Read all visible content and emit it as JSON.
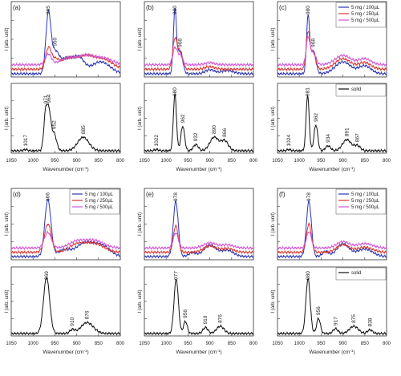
{
  "figure": {
    "wavenumber_label": "Wavenumber (cm",
    "wavenumber_sup": "-1",
    "wavenumber_close": ")",
    "y_label": "I (arb. unit)"
  },
  "chart_data": [
    {
      "panel": "a",
      "label": "(a)",
      "type": "line",
      "x_ticks": [
        1050,
        1000,
        950,
        900,
        850,
        800
      ],
      "xlim": [
        1050,
        800
      ],
      "solution": {
        "legend": [],
        "peak_labels": [
          {
            "x": 965,
            "text": "965"
          },
          {
            "x": 950,
            "text": "950"
          }
        ],
        "series": [
          {
            "name": "5 mg / 100µL",
            "color": "#2b35b5",
            "peaks": [
              [
                965,
                0.88,
                8
              ],
              [
                950,
                0.28,
                12
              ],
              [
                925,
                0.22,
                22
              ],
              [
                895,
                0.22,
                18
              ],
              [
                845,
                0.18,
                30
              ]
            ]
          },
          {
            "name": "5 mg / 250µL",
            "color": "#d9362f",
            "peaks": [
              [
                965,
                0.3,
                9
              ],
              [
                950,
                0.12,
                12
              ],
              [
                920,
                0.16,
                25
              ],
              [
                880,
                0.18,
                25
              ],
              [
                840,
                0.15,
                30
              ]
            ]
          },
          {
            "name": "5 mg / 500µL",
            "color": "#d155d8",
            "peaks": [
              [
                965,
                0.16,
                10
              ],
              [
                920,
                0.1,
                25
              ],
              [
                880,
                0.12,
                25
              ],
              [
                840,
                0.1,
                30
              ]
            ]
          }
        ]
      },
      "solid": {
        "legend": [],
        "peak_labels": [
          {
            "x": 971,
            "text": "971"
          },
          {
            "x": 964,
            "text": "964"
          },
          {
            "x": 952,
            "text": "952"
          },
          {
            "x": 885,
            "text": "885"
          },
          {
            "x": 1017,
            "text": "1017"
          }
        ],
        "series": [
          {
            "name": "solid",
            "color": "#111111",
            "peaks": [
              [
                971,
                0.62,
                6
              ],
              [
                963,
                0.55,
                6
              ],
              [
                952,
                0.28,
                8
              ],
              [
                885,
                0.22,
                18
              ],
              [
                1017,
                0.02,
                6
              ]
            ]
          }
        ]
      }
    },
    {
      "panel": "b",
      "label": "(b)",
      "type": "line",
      "x_ticks": [
        1050,
        1000,
        950,
        900,
        850,
        800
      ],
      "xlim": [
        1050,
        800
      ],
      "solution": {
        "legend": [],
        "peak_labels": [
          {
            "x": 980,
            "text": "980"
          },
          {
            "x": 968,
            "text": "968"
          }
        ],
        "series": [
          {
            "name": "5 mg / 100µL",
            "color": "#2b35b5",
            "peaks": [
              [
                980,
                0.95,
                5
              ],
              [
                968,
                0.35,
                8
              ],
              [
                900,
                0.06,
                15
              ],
              [
                860,
                0.05,
                20
              ]
            ]
          },
          {
            "name": "5 mg / 250µL",
            "color": "#d9362f",
            "peaks": [
              [
                980,
                0.45,
                7
              ],
              [
                968,
                0.25,
                8
              ],
              [
                900,
                0.04,
                15
              ]
            ]
          },
          {
            "name": "5 mg / 500µL",
            "color": "#d155d8",
            "peaks": [
              [
                980,
                0.25,
                7
              ],
              [
                968,
                0.14,
                8
              ],
              [
                900,
                0.03,
                15
              ]
            ]
          }
        ]
      },
      "solid": {
        "legend": [],
        "peak_labels": [
          {
            "x": 980,
            "text": "980"
          },
          {
            "x": 962,
            "text": "962"
          },
          {
            "x": 932,
            "text": "932"
          },
          {
            "x": 890,
            "text": "890"
          },
          {
            "x": 866,
            "text": "866"
          },
          {
            "x": 1022,
            "text": "1022"
          }
        ],
        "series": [
          {
            "name": "solid",
            "color": "#111111",
            "peaks": [
              [
                980,
                0.92,
                5
              ],
              [
                962,
                0.4,
                6
              ],
              [
                932,
                0.1,
                8
              ],
              [
                890,
                0.22,
                14
              ],
              [
                866,
                0.16,
                12
              ],
              [
                1022,
                0.02,
                6
              ]
            ]
          }
        ]
      }
    },
    {
      "panel": "c",
      "label": "(c)",
      "type": "line",
      "x_ticks": [
        1050,
        1000,
        950,
        900,
        850,
        800
      ],
      "xlim": [
        1050,
        800
      ],
      "solution": {
        "legend": [
          {
            "name": "5 mg / 100µL",
            "color": "#2b35b5"
          },
          {
            "name": "5 mg / 250µL",
            "color": "#d9362f"
          },
          {
            "name": "5 mg / 500µL",
            "color": "#d155d8"
          }
        ],
        "peak_labels": [
          {
            "x": 980,
            "text": "980"
          },
          {
            "x": 968,
            "text": "968"
          }
        ],
        "series": [
          {
            "name": "5 mg / 100µL",
            "color": "#2b35b5",
            "peaks": [
              [
                980,
                0.85,
                5
              ],
              [
                968,
                0.35,
                8
              ],
              [
                900,
                0.18,
                25
              ],
              [
                850,
                0.12,
                20
              ]
            ]
          },
          {
            "name": "5 mg / 250µL",
            "color": "#d9362f",
            "peaks": [
              [
                980,
                0.55,
                6
              ],
              [
                968,
                0.25,
                8
              ],
              [
                900,
                0.16,
                25
              ],
              [
                850,
                0.1,
                20
              ]
            ]
          },
          {
            "name": "5 mg / 500µL",
            "color": "#d155d8",
            "peaks": [
              [
                980,
                0.4,
                6
              ],
              [
                968,
                0.2,
                8
              ],
              [
                900,
                0.14,
                25
              ],
              [
                850,
                0.09,
                20
              ]
            ]
          }
        ]
      },
      "solid": {
        "legend": [
          {
            "name": "solid",
            "color": "#111111"
          }
        ],
        "peak_labels": [
          {
            "x": 981,
            "text": "981"
          },
          {
            "x": 962,
            "text": "962"
          },
          {
            "x": 934,
            "text": "934"
          },
          {
            "x": 891,
            "text": "891"
          },
          {
            "x": 867,
            "text": "867"
          },
          {
            "x": 1024,
            "text": "1024"
          }
        ],
        "series": [
          {
            "name": "solid",
            "color": "#111111",
            "peaks": [
              [
                981,
                0.9,
                5
              ],
              [
                962,
                0.42,
                6
              ],
              [
                934,
                0.08,
                8
              ],
              [
                891,
                0.18,
                14
              ],
              [
                867,
                0.08,
                10
              ],
              [
                1024,
                0.02,
                6
              ]
            ]
          }
        ]
      }
    },
    {
      "panel": "d",
      "label": "(d)",
      "type": "line",
      "x_ticks": [
        1050,
        1000,
        950,
        900,
        850,
        800
      ],
      "xlim": [
        1050,
        800
      ],
      "solution": {
        "legend": [
          {
            "name": "5 mg / 100µL",
            "color": "#2b35b5"
          },
          {
            "name": "5 mg / 250µL",
            "color": "#d9362f"
          },
          {
            "name": "5 mg / 500µL",
            "color": "#d155d8"
          }
        ],
        "peak_labels": [
          {
            "x": 966,
            "text": "966"
          }
        ],
        "series": [
          {
            "name": "5 mg / 100µL",
            "color": "#2b35b5",
            "peaks": [
              [
                966,
                0.9,
                10
              ],
              [
                930,
                0.1,
                20
              ],
              [
                880,
                0.22,
                30
              ],
              [
                840,
                0.15,
                25
              ]
            ]
          },
          {
            "name": "5 mg / 250µL",
            "color": "#d9362f",
            "peaks": [
              [
                966,
                0.45,
                11
              ],
              [
                900,
                0.12,
                25
              ],
              [
                860,
                0.14,
                30
              ]
            ]
          },
          {
            "name": "5 mg / 500µL",
            "color": "#d155d8",
            "peaks": [
              [
                966,
                0.25,
                11
              ],
              [
                900,
                0.1,
                25
              ],
              [
                860,
                0.12,
                30
              ]
            ]
          }
        ]
      },
      "solid": {
        "legend": [],
        "peak_labels": [
          {
            "x": 969,
            "text": "969"
          },
          {
            "x": 910,
            "text": "910"
          },
          {
            "x": 876,
            "text": "876"
          }
        ],
        "series": [
          {
            "name": "solid",
            "color": "#111111",
            "peaks": [
              [
                969,
                0.92,
                10
              ],
              [
                910,
                0.06,
                8
              ],
              [
                876,
                0.18,
                20
              ]
            ]
          }
        ]
      }
    },
    {
      "panel": "e",
      "label": "(e)",
      "type": "line",
      "x_ticks": [
        1050,
        1000,
        950,
        900,
        850,
        800
      ],
      "xlim": [
        1050,
        800
      ],
      "solution": {
        "legend": [],
        "peak_labels": [
          {
            "x": 978,
            "text": "978"
          }
        ],
        "series": [
          {
            "name": "5 mg / 100µL",
            "color": "#2b35b5",
            "peaks": [
              [
                978,
                0.88,
                8
              ],
              [
                940,
                0.06,
                12
              ],
              [
                900,
                0.18,
                20
              ],
              [
                860,
                0.1,
                20
              ]
            ]
          },
          {
            "name": "5 mg / 250µL",
            "color": "#d9362f",
            "peaks": [
              [
                978,
                0.42,
                8
              ],
              [
                900,
                0.1,
                20
              ],
              [
                860,
                0.06,
                20
              ]
            ]
          },
          {
            "name": "5 mg / 500µL",
            "color": "#d155d8",
            "peaks": [
              [
                978,
                0.24,
                8
              ],
              [
                900,
                0.08,
                20
              ],
              [
                860,
                0.05,
                20
              ]
            ]
          }
        ]
      },
      "solid": {
        "legend": [],
        "peak_labels": [
          {
            "x": 977,
            "text": "977"
          },
          {
            "x": 956,
            "text": "956"
          },
          {
            "x": 910,
            "text": "910"
          },
          {
            "x": 876,
            "text": "876"
          }
        ],
        "series": [
          {
            "name": "solid",
            "color": "#111111",
            "peaks": [
              [
                977,
                0.9,
                7
              ],
              [
                956,
                0.2,
                6
              ],
              [
                910,
                0.1,
                8
              ],
              [
                876,
                0.12,
                12
              ]
            ]
          }
        ]
      }
    },
    {
      "panel": "f",
      "label": "(f)",
      "type": "line",
      "x_ticks": [
        1050,
        1000,
        950,
        900,
        850,
        800
      ],
      "xlim": [
        1050,
        800
      ],
      "solution": {
        "legend": [
          {
            "name": "5 mg / 100µL",
            "color": "#2b35b5"
          },
          {
            "name": "5 mg / 250µL",
            "color": "#d9362f"
          },
          {
            "name": "5 mg / 500µL",
            "color": "#d155d8"
          }
        ],
        "peak_labels": [
          {
            "x": 978,
            "text": "978"
          }
        ],
        "series": [
          {
            "name": "5 mg / 100µL",
            "color": "#2b35b5",
            "peaks": [
              [
                978,
                0.88,
                8
              ],
              [
                940,
                0.08,
                10
              ],
              [
                900,
                0.2,
                20
              ],
              [
                850,
                0.12,
                25
              ]
            ]
          },
          {
            "name": "5 mg / 250µL",
            "color": "#d9362f",
            "peaks": [
              [
                978,
                0.45,
                8
              ],
              [
                900,
                0.12,
                20
              ],
              [
                850,
                0.08,
                25
              ]
            ]
          },
          {
            "name": "5 mg / 500µL",
            "color": "#d155d8",
            "peaks": [
              [
                978,
                0.26,
                8
              ],
              [
                900,
                0.1,
                20
              ],
              [
                850,
                0.07,
                25
              ]
            ]
          }
        ]
      },
      "solid": {
        "legend": [
          {
            "name": "solid",
            "color": "#111111"
          }
        ],
        "peak_labels": [
          {
            "x": 980,
            "text": "980"
          },
          {
            "x": 956,
            "text": "956"
          },
          {
            "x": 917,
            "text": "917"
          },
          {
            "x": 875,
            "text": "875"
          },
          {
            "x": 838,
            "text": "838"
          }
        ],
        "series": [
          {
            "name": "solid",
            "color": "#111111",
            "peaks": [
              [
                980,
                0.9,
                7
              ],
              [
                956,
                0.25,
                6
              ],
              [
                917,
                0.08,
                8
              ],
              [
                875,
                0.12,
                14
              ],
              [
                838,
                0.06,
                8
              ]
            ]
          }
        ]
      }
    }
  ]
}
